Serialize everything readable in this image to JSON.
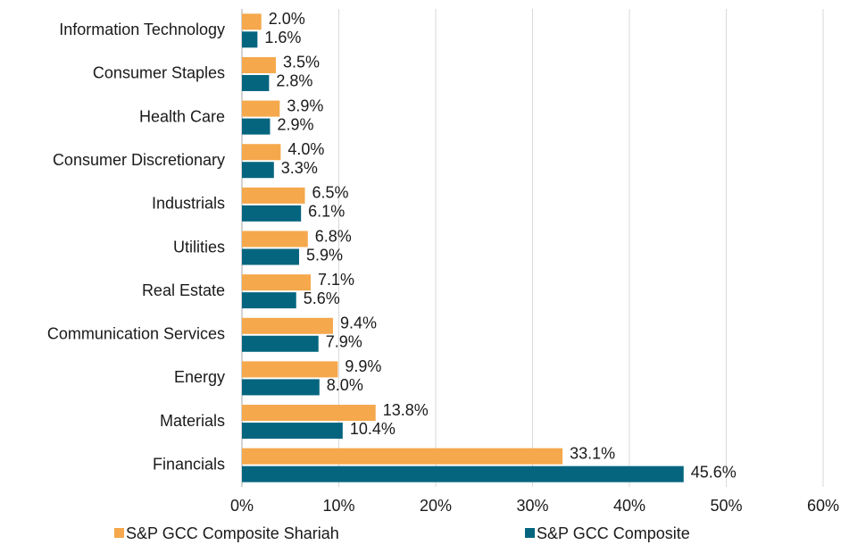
{
  "chart_data": {
    "type": "hbar",
    "categories": [
      "Information Technology",
      "Consumer Staples",
      "Health Care",
      "Consumer Discretionary",
      "Industrials",
      "Utilities",
      "Real Estate",
      "Communication Services",
      "Energy",
      "Materials",
      "Financials"
    ],
    "series": [
      {
        "name": "S&P GCC Composite Shariah",
        "color": "#f5a84c",
        "values": [
          2.0,
          3.5,
          3.9,
          4.0,
          6.5,
          6.8,
          7.1,
          9.4,
          9.9,
          13.8,
          33.1
        ],
        "value_labels": [
          "2.0%",
          "3.5%",
          "3.9%",
          "4.0%",
          "6.5%",
          "6.8%",
          "7.1%",
          "9.4%",
          "9.9%",
          "13.8%",
          "33.1%"
        ]
      },
      {
        "name": "S&P GCC Composite",
        "color": "#05657f",
        "values": [
          1.6,
          2.8,
          2.9,
          3.3,
          6.1,
          5.9,
          5.6,
          7.9,
          8.0,
          10.4,
          45.6
        ],
        "value_labels": [
          "1.6%",
          "2.8%",
          "2.9%",
          "3.3%",
          "6.1%",
          "5.9%",
          "5.6%",
          "7.9%",
          "8.0%",
          "10.4%",
          "45.6%"
        ]
      }
    ],
    "xlim": [
      0,
      60
    ],
    "xticks": [
      {
        "value": 0,
        "label": "0%"
      },
      {
        "value": 10,
        "label": "10%"
      },
      {
        "value": 20,
        "label": "20%"
      },
      {
        "value": 30,
        "label": "30%"
      },
      {
        "value": 40,
        "label": "40%"
      },
      {
        "value": 50,
        "label": "50%"
      },
      {
        "value": 60,
        "label": "60%"
      }
    ],
    "grid": true
  }
}
